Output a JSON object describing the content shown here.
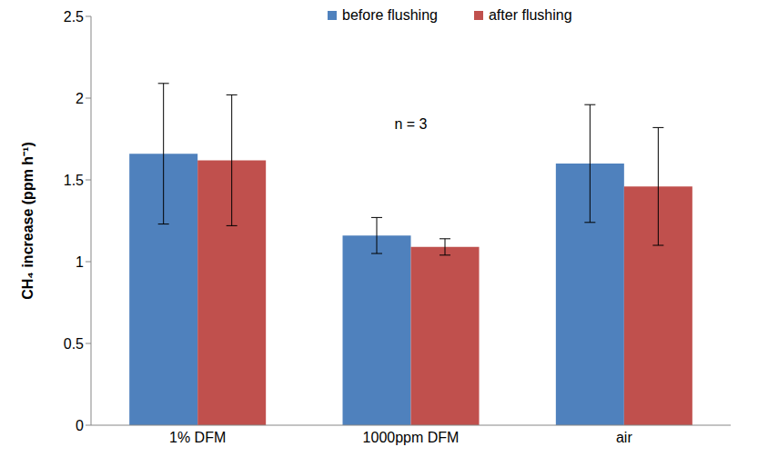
{
  "chart_data": {
    "type": "bar",
    "categories": [
      "1% DFM",
      "1000ppm DFM",
      "air"
    ],
    "series": [
      {
        "name": "before flushing",
        "color": "#4f81bd",
        "values": [
          1.66,
          1.16,
          1.6
        ],
        "errors": [
          0.43,
          0.11,
          0.36
        ]
      },
      {
        "name": "after flushing",
        "color": "#c0504d",
        "values": [
          1.62,
          1.09,
          1.46
        ],
        "errors": [
          0.4,
          0.05,
          0.36
        ]
      }
    ],
    "y_label": "CH₄ increase (ppm h⁻¹)",
    "annotations": [
      "n = 3"
    ],
    "ylim": [
      0,
      2.5
    ],
    "yticks": [
      0,
      0.5,
      1,
      1.5,
      2,
      2.5
    ],
    "legend": "top",
    "grid": false
  }
}
